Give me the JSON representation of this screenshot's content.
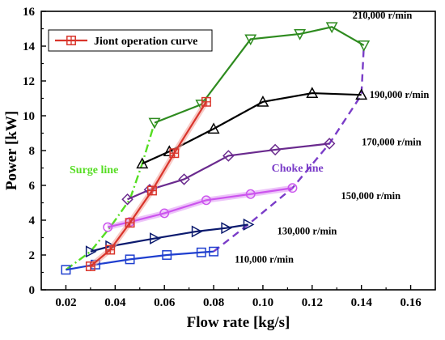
{
  "chart_data": {
    "type": "line",
    "xlabel": "Flow rate [kg/s]",
    "ylabel": "Power [kW]",
    "xlim": [
      0.01,
      0.17
    ],
    "ylim": [
      0,
      16
    ],
    "xticks": [
      "0.02",
      "0.04",
      "0.06",
      "0.08",
      "0.10",
      "0.12",
      "0.14",
      "0.16"
    ],
    "yticks": [
      "0",
      "2",
      "4",
      "6",
      "8",
      "10",
      "12",
      "14",
      "16"
    ],
    "grid": false,
    "legend_position": "top-left",
    "series": [
      {
        "label": "110,000 r/min",
        "color": "#1f3fcf",
        "marker": "square",
        "x": [
          0.02,
          0.032,
          0.046,
          0.061,
          0.075,
          0.08
        ],
        "y": [
          1.15,
          1.45,
          1.75,
          2.0,
          2.15,
          2.2
        ]
      },
      {
        "label": "130,000 r/min",
        "color": "#0b1a6e",
        "marker": "triangle-right",
        "x": [
          0.03,
          0.038,
          0.056,
          0.073,
          0.085,
          0.094
        ],
        "y": [
          2.2,
          2.5,
          2.95,
          3.35,
          3.55,
          3.75
        ]
      },
      {
        "label": "150,000 r/min",
        "color": "#cc55ee",
        "marker": "circle",
        "x": [
          0.037,
          0.046,
          0.06,
          0.077,
          0.095,
          0.112
        ],
        "y": [
          3.6,
          3.9,
          4.4,
          5.15,
          5.5,
          5.85
        ]
      },
      {
        "label": "170,000 r/min",
        "color": "#6a2a8e",
        "marker": "diamond",
        "x": [
          0.045,
          0.054,
          0.068,
          0.086,
          0.105,
          0.127
        ],
        "y": [
          5.2,
          5.75,
          6.35,
          7.7,
          8.05,
          8.4
        ]
      },
      {
        "label": "190,000 r/min",
        "color": "#000000",
        "marker": "triangle-up",
        "x": [
          0.051,
          0.062,
          0.08,
          0.1,
          0.12,
          0.14
        ],
        "y": [
          7.25,
          7.95,
          9.25,
          10.8,
          11.3,
          11.2
        ]
      },
      {
        "label": "210,000 r/min",
        "color": "#2e8b1f",
        "marker": "triangle-down",
        "x": [
          0.056,
          0.075,
          0.095,
          0.115,
          0.128,
          0.141
        ],
        "y": [
          9.6,
          10.65,
          14.4,
          14.7,
          15.1,
          14.05
        ]
      },
      {
        "name": "Jiont operation curve",
        "color": "#d9342b",
        "marker": "square-cross",
        "x": [
          0.03,
          0.038,
          0.046,
          0.055,
          0.064,
          0.077
        ],
        "y": [
          1.35,
          2.3,
          3.85,
          5.7,
          7.85,
          10.8
        ]
      }
    ],
    "boundaries": [
      {
        "label": "Surge line",
        "color": "#55dd22",
        "x": [
          0.02,
          0.03,
          0.038,
          0.046,
          0.051,
          0.056
        ],
        "y": [
          1.15,
          2.2,
          3.6,
          5.2,
          7.25,
          9.6
        ]
      },
      {
        "label": "Choke line",
        "color": "#7a3cc8",
        "x": [
          0.08,
          0.094,
          0.112,
          0.127,
          0.14,
          0.141
        ],
        "y": [
          2.2,
          3.75,
          5.85,
          8.4,
          11.2,
          14.05
        ]
      }
    ]
  }
}
